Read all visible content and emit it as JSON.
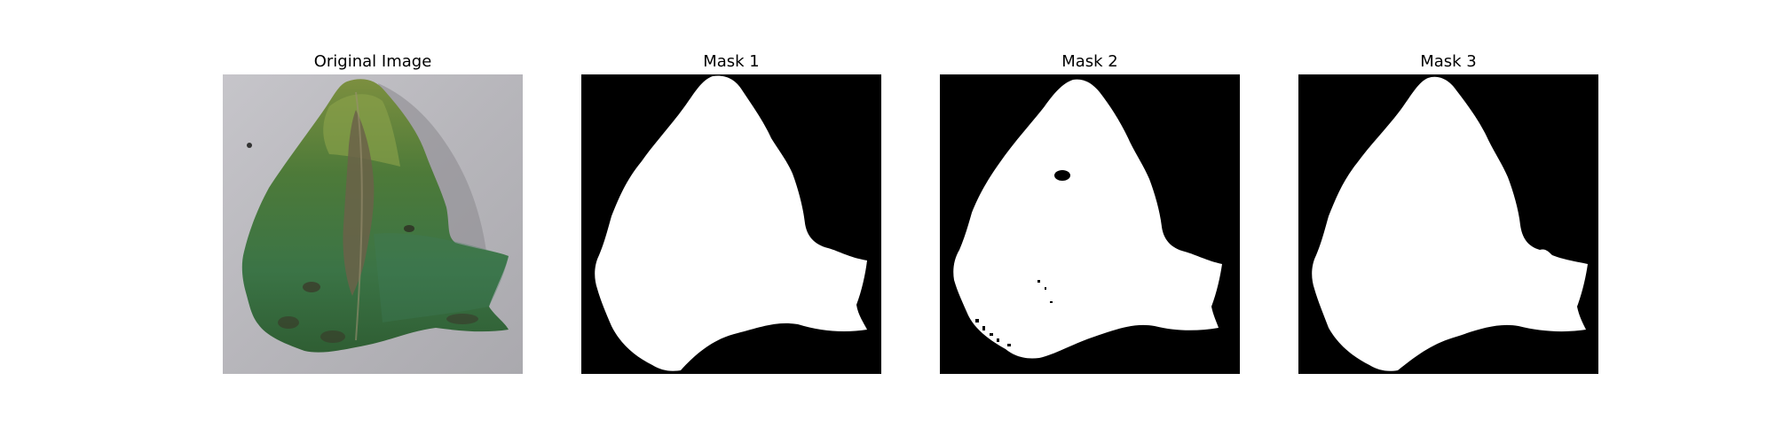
{
  "panels": [
    {
      "title": "Original Image"
    },
    {
      "title": "Mask 1"
    },
    {
      "title": "Mask 2"
    },
    {
      "title": "Mask 3"
    }
  ],
  "colors": {
    "mask_background": "#000000",
    "mask_foreground": "#ffffff",
    "leaf_green": "#3f7a3c",
    "leaf_dark_green": "#2a5a2c",
    "leaf_yellow_green": "#8aa14a",
    "lesion_brown": "#6b6249",
    "background_gray": "#b9b8bd"
  }
}
